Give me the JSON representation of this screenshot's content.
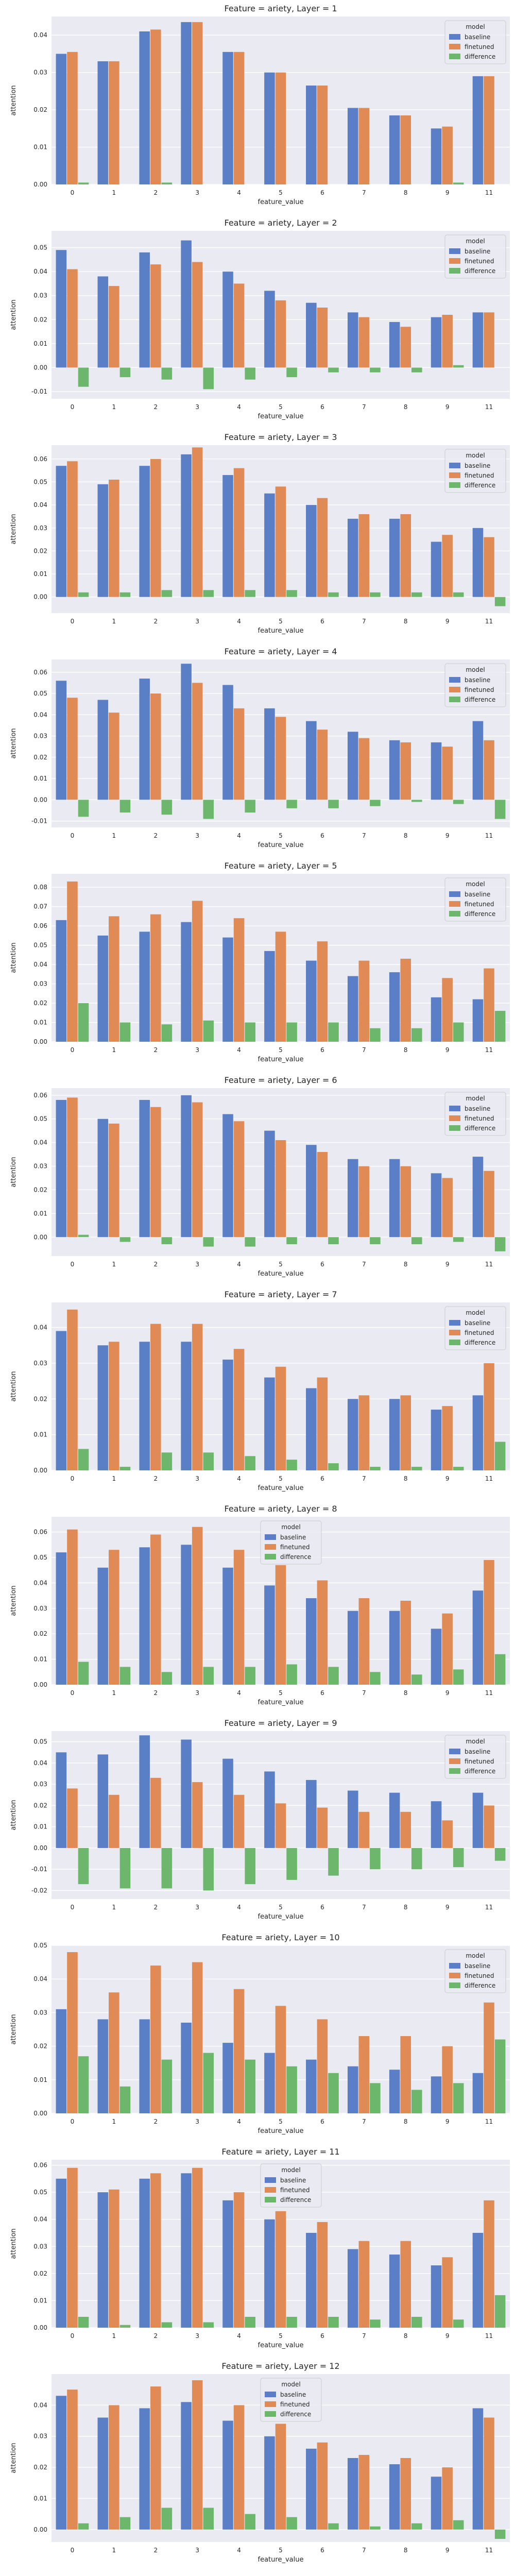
{
  "legend_title": "model",
  "colors": {
    "baseline": "#5a7fc6",
    "finetuned": "#e08a55",
    "difference": "#6cb76b",
    "background": "#eaeaf2",
    "grid": "#ffffff"
  },
  "chart_data": [
    {
      "type": "bar",
      "title": "Feature = ariety, Layer = 1",
      "xlabel": "feature_value",
      "ylabel": "attention",
      "categories": [
        "0",
        "1",
        "2",
        "3",
        "4",
        "5",
        "6",
        "7",
        "8",
        "9",
        "11"
      ],
      "ylim": [
        0,
        0.045
      ],
      "yticks": [
        0.0,
        0.01,
        0.02,
        0.03,
        0.04
      ],
      "grid": true,
      "legend": "top-right",
      "series": [
        {
          "name": "baseline",
          "values": [
            0.035,
            0.033,
            0.041,
            0.0435,
            0.0355,
            0.03,
            0.0265,
            0.0205,
            0.0185,
            0.015,
            0.029
          ]
        },
        {
          "name": "finetuned",
          "values": [
            0.0355,
            0.033,
            0.0415,
            0.0435,
            0.0355,
            0.03,
            0.0265,
            0.0205,
            0.0185,
            0.0155,
            0.029
          ]
        },
        {
          "name": "difference",
          "values": [
            0.0005,
            0.0,
            0.0005,
            0.0,
            0.0,
            0.0,
            0.0,
            0.0,
            0.0,
            0.0005,
            0.0
          ]
        }
      ]
    },
    {
      "type": "bar",
      "title": "Feature = ariety, Layer = 2",
      "xlabel": "feature_value",
      "ylabel": "attention",
      "categories": [
        "0",
        "1",
        "2",
        "3",
        "4",
        "5",
        "6",
        "7",
        "8",
        "9",
        "11"
      ],
      "ylim": [
        -0.013,
        0.057
      ],
      "yticks": [
        -0.01,
        0.0,
        0.01,
        0.02,
        0.03,
        0.04,
        0.05
      ],
      "grid": true,
      "legend": "top-right",
      "series": [
        {
          "name": "baseline",
          "values": [
            0.049,
            0.038,
            0.048,
            0.053,
            0.04,
            0.032,
            0.027,
            0.023,
            0.019,
            0.021,
            0.023
          ]
        },
        {
          "name": "finetuned",
          "values": [
            0.041,
            0.034,
            0.043,
            0.044,
            0.035,
            0.028,
            0.025,
            0.021,
            0.017,
            0.022,
            0.023
          ]
        },
        {
          "name": "difference",
          "values": [
            -0.008,
            -0.004,
            -0.005,
            -0.009,
            -0.005,
            -0.004,
            -0.002,
            -0.002,
            -0.002,
            0.001,
            0.0
          ]
        }
      ]
    },
    {
      "type": "bar",
      "title": "Feature = ariety, Layer = 3",
      "xlabel": "feature_value",
      "ylabel": "attention",
      "categories": [
        "0",
        "1",
        "2",
        "3",
        "4",
        "5",
        "6",
        "7",
        "8",
        "9",
        "11"
      ],
      "ylim": [
        -0.007,
        0.066
      ],
      "yticks": [
        0.0,
        0.01,
        0.02,
        0.03,
        0.04,
        0.05,
        0.06
      ],
      "grid": true,
      "legend": "top-right",
      "series": [
        {
          "name": "baseline",
          "values": [
            0.057,
            0.049,
            0.057,
            0.062,
            0.053,
            0.045,
            0.04,
            0.034,
            0.034,
            0.024,
            0.03
          ]
        },
        {
          "name": "finetuned",
          "values": [
            0.059,
            0.051,
            0.06,
            0.065,
            0.056,
            0.048,
            0.043,
            0.036,
            0.036,
            0.027,
            0.026
          ]
        },
        {
          "name": "difference",
          "values": [
            0.002,
            0.002,
            0.003,
            0.003,
            0.003,
            0.003,
            0.002,
            0.002,
            0.002,
            0.002,
            -0.004
          ]
        }
      ]
    },
    {
      "type": "bar",
      "title": "Feature = ariety, Layer = 4",
      "xlabel": "feature_value",
      "ylabel": "attention",
      "categories": [
        "0",
        "1",
        "2",
        "3",
        "4",
        "5",
        "6",
        "7",
        "8",
        "9",
        "11"
      ],
      "ylim": [
        -0.013,
        0.066
      ],
      "yticks": [
        -0.01,
        0.0,
        0.01,
        0.02,
        0.03,
        0.04,
        0.05,
        0.06
      ],
      "grid": true,
      "legend": "top-right",
      "series": [
        {
          "name": "baseline",
          "values": [
            0.056,
            0.047,
            0.057,
            0.064,
            0.054,
            0.043,
            0.037,
            0.032,
            0.028,
            0.027,
            0.037
          ]
        },
        {
          "name": "finetuned",
          "values": [
            0.048,
            0.041,
            0.05,
            0.055,
            0.043,
            0.039,
            0.033,
            0.029,
            0.027,
            0.025,
            0.028
          ]
        },
        {
          "name": "difference",
          "values": [
            -0.008,
            -0.006,
            -0.007,
            -0.009,
            -0.006,
            -0.004,
            -0.004,
            -0.003,
            -0.001,
            -0.002,
            -0.009
          ]
        }
      ]
    },
    {
      "type": "bar",
      "title": "Feature = ariety, Layer = 5",
      "xlabel": "feature_value",
      "ylabel": "attention",
      "categories": [
        "0",
        "1",
        "2",
        "3",
        "4",
        "5",
        "6",
        "7",
        "8",
        "9",
        "11"
      ],
      "ylim": [
        0,
        0.087
      ],
      "yticks": [
        0.0,
        0.01,
        0.02,
        0.03,
        0.04,
        0.05,
        0.06,
        0.07,
        0.08
      ],
      "grid": true,
      "legend": "top-right",
      "series": [
        {
          "name": "baseline",
          "values": [
            0.063,
            0.055,
            0.057,
            0.062,
            0.054,
            0.047,
            0.042,
            0.034,
            0.036,
            0.023,
            0.022
          ]
        },
        {
          "name": "finetuned",
          "values": [
            0.083,
            0.065,
            0.066,
            0.073,
            0.064,
            0.057,
            0.052,
            0.042,
            0.043,
            0.033,
            0.038
          ]
        },
        {
          "name": "difference",
          "values": [
            0.02,
            0.01,
            0.009,
            0.011,
            0.01,
            0.01,
            0.01,
            0.007,
            0.007,
            0.01,
            0.016
          ]
        }
      ]
    },
    {
      "type": "bar",
      "title": "Feature = ariety, Layer = 6",
      "xlabel": "feature_value",
      "ylabel": "attention",
      "categories": [
        "0",
        "1",
        "2",
        "3",
        "4",
        "5",
        "6",
        "7",
        "8",
        "9",
        "11"
      ],
      "ylim": [
        -0.008,
        0.063
      ],
      "yticks": [
        0.0,
        0.01,
        0.02,
        0.03,
        0.04,
        0.05,
        0.06
      ],
      "grid": true,
      "legend": "top-right",
      "series": [
        {
          "name": "baseline",
          "values": [
            0.058,
            0.05,
            0.058,
            0.06,
            0.052,
            0.045,
            0.039,
            0.033,
            0.033,
            0.027,
            0.034
          ]
        },
        {
          "name": "finetuned",
          "values": [
            0.059,
            0.048,
            0.055,
            0.057,
            0.049,
            0.041,
            0.036,
            0.03,
            0.03,
            0.025,
            0.028
          ]
        },
        {
          "name": "difference",
          "values": [
            0.001,
            -0.002,
            -0.003,
            -0.004,
            -0.004,
            -0.003,
            -0.003,
            -0.003,
            -0.003,
            -0.002,
            -0.006
          ]
        }
      ]
    },
    {
      "type": "bar",
      "title": "Feature = ariety, Layer = 7",
      "xlabel": "feature_value",
      "ylabel": "attention",
      "categories": [
        "0",
        "1",
        "2",
        "3",
        "4",
        "5",
        "6",
        "7",
        "8",
        "9",
        "11"
      ],
      "ylim": [
        0,
        0.047
      ],
      "yticks": [
        0.0,
        0.01,
        0.02,
        0.03,
        0.04
      ],
      "grid": true,
      "legend": "top-right",
      "series": [
        {
          "name": "baseline",
          "values": [
            0.039,
            0.035,
            0.036,
            0.036,
            0.031,
            0.026,
            0.023,
            0.02,
            0.02,
            0.017,
            0.021
          ]
        },
        {
          "name": "finetuned",
          "values": [
            0.045,
            0.036,
            0.041,
            0.041,
            0.034,
            0.029,
            0.026,
            0.021,
            0.021,
            0.018,
            0.03
          ]
        },
        {
          "name": "difference",
          "values": [
            0.006,
            0.001,
            0.005,
            0.005,
            0.004,
            0.003,
            0.002,
            0.001,
            0.001,
            0.001,
            0.008
          ]
        }
      ]
    },
    {
      "type": "bar",
      "title": "Feature = ariety, Layer = 8",
      "xlabel": "feature_value",
      "ylabel": "attention",
      "categories": [
        "0",
        "1",
        "2",
        "3",
        "4",
        "5",
        "6",
        "7",
        "8",
        "9",
        "11"
      ],
      "ylim": [
        0,
        0.066
      ],
      "yticks": [
        0.0,
        0.01,
        0.02,
        0.03,
        0.04,
        0.05,
        0.06
      ],
      "grid": true,
      "legend": "top-center",
      "series": [
        {
          "name": "baseline",
          "values": [
            0.052,
            0.046,
            0.054,
            0.055,
            0.046,
            0.039,
            0.034,
            0.029,
            0.029,
            0.022,
            0.037
          ]
        },
        {
          "name": "finetuned",
          "values": [
            0.061,
            0.053,
            0.059,
            0.062,
            0.053,
            0.047,
            0.041,
            0.034,
            0.033,
            0.028,
            0.049
          ]
        },
        {
          "name": "difference",
          "values": [
            0.009,
            0.007,
            0.005,
            0.007,
            0.007,
            0.008,
            0.007,
            0.005,
            0.004,
            0.006,
            0.012
          ]
        }
      ]
    },
    {
      "type": "bar",
      "title": "Feature = ariety, Layer = 9",
      "xlabel": "feature_value",
      "ylabel": "attention",
      "categories": [
        "0",
        "1",
        "2",
        "3",
        "4",
        "5",
        "6",
        "7",
        "8",
        "9",
        "11"
      ],
      "ylim": [
        -0.024,
        0.055
      ],
      "yticks": [
        -0.02,
        -0.01,
        0.0,
        0.01,
        0.02,
        0.03,
        0.04,
        0.05
      ],
      "grid": true,
      "legend": "top-right",
      "series": [
        {
          "name": "baseline",
          "values": [
            0.045,
            0.044,
            0.053,
            0.051,
            0.042,
            0.036,
            0.032,
            0.027,
            0.026,
            0.022,
            0.026
          ]
        },
        {
          "name": "finetuned",
          "values": [
            0.028,
            0.025,
            0.033,
            0.031,
            0.025,
            0.021,
            0.019,
            0.017,
            0.017,
            0.013,
            0.02
          ]
        },
        {
          "name": "difference",
          "values": [
            -0.017,
            -0.019,
            -0.019,
            -0.02,
            -0.017,
            -0.015,
            -0.013,
            -0.01,
            -0.01,
            -0.009,
            -0.006
          ]
        }
      ]
    },
    {
      "type": "bar",
      "title": "Feature = ariety, Layer = 10",
      "xlabel": "feature_value",
      "ylabel": "attention",
      "categories": [
        "0",
        "1",
        "2",
        "3",
        "4",
        "5",
        "6",
        "7",
        "8",
        "9",
        "11"
      ],
      "ylim": [
        0,
        0.05
      ],
      "yticks": [
        0.0,
        0.01,
        0.02,
        0.03,
        0.04,
        0.05
      ],
      "grid": true,
      "legend": "top-right",
      "series": [
        {
          "name": "baseline",
          "values": [
            0.031,
            0.028,
            0.028,
            0.027,
            0.021,
            0.018,
            0.016,
            0.014,
            0.013,
            0.011,
            0.012
          ]
        },
        {
          "name": "finetuned",
          "values": [
            0.048,
            0.036,
            0.044,
            0.045,
            0.037,
            0.032,
            0.028,
            0.023,
            0.023,
            0.02,
            0.033
          ]
        },
        {
          "name": "difference",
          "values": [
            0.017,
            0.008,
            0.016,
            0.018,
            0.016,
            0.014,
            0.012,
            0.009,
            0.007,
            0.009,
            0.022
          ]
        }
      ]
    },
    {
      "type": "bar",
      "title": "Feature = ariety, Layer = 11",
      "xlabel": "feature_value",
      "ylabel": "attention",
      "categories": [
        "0",
        "1",
        "2",
        "3",
        "4",
        "5",
        "6",
        "7",
        "8",
        "9",
        "11"
      ],
      "ylim": [
        0,
        0.062
      ],
      "yticks": [
        0.0,
        0.01,
        0.02,
        0.03,
        0.04,
        0.05,
        0.06
      ],
      "grid": true,
      "legend": "top-center",
      "series": [
        {
          "name": "baseline",
          "values": [
            0.055,
            0.05,
            0.055,
            0.057,
            0.047,
            0.04,
            0.035,
            0.029,
            0.027,
            0.023,
            0.035
          ]
        },
        {
          "name": "finetuned",
          "values": [
            0.059,
            0.051,
            0.057,
            0.059,
            0.05,
            0.043,
            0.039,
            0.032,
            0.032,
            0.026,
            0.047
          ]
        },
        {
          "name": "difference",
          "values": [
            0.004,
            0.001,
            0.002,
            0.002,
            0.004,
            0.004,
            0.004,
            0.003,
            0.004,
            0.003,
            0.012
          ]
        }
      ]
    },
    {
      "type": "bar",
      "title": "Feature = ariety, Layer = 12",
      "xlabel": "feature_value",
      "ylabel": "attention",
      "categories": [
        "0",
        "1",
        "2",
        "3",
        "4",
        "5",
        "6",
        "7",
        "8",
        "9",
        "11"
      ],
      "ylim": [
        -0.004,
        0.05
      ],
      "yticks": [
        0.0,
        0.01,
        0.02,
        0.03,
        0.04
      ],
      "grid": true,
      "legend": "top-center",
      "series": [
        {
          "name": "baseline",
          "values": [
            0.043,
            0.036,
            0.039,
            0.041,
            0.035,
            0.03,
            0.026,
            0.023,
            0.021,
            0.017,
            0.039
          ]
        },
        {
          "name": "finetuned",
          "values": [
            0.045,
            0.04,
            0.046,
            0.048,
            0.04,
            0.034,
            0.028,
            0.024,
            0.023,
            0.02,
            0.036
          ]
        },
        {
          "name": "difference",
          "values": [
            0.002,
            0.004,
            0.007,
            0.007,
            0.005,
            0.004,
            0.002,
            0.001,
            0.002,
            0.003,
            -0.003
          ]
        }
      ]
    }
  ]
}
